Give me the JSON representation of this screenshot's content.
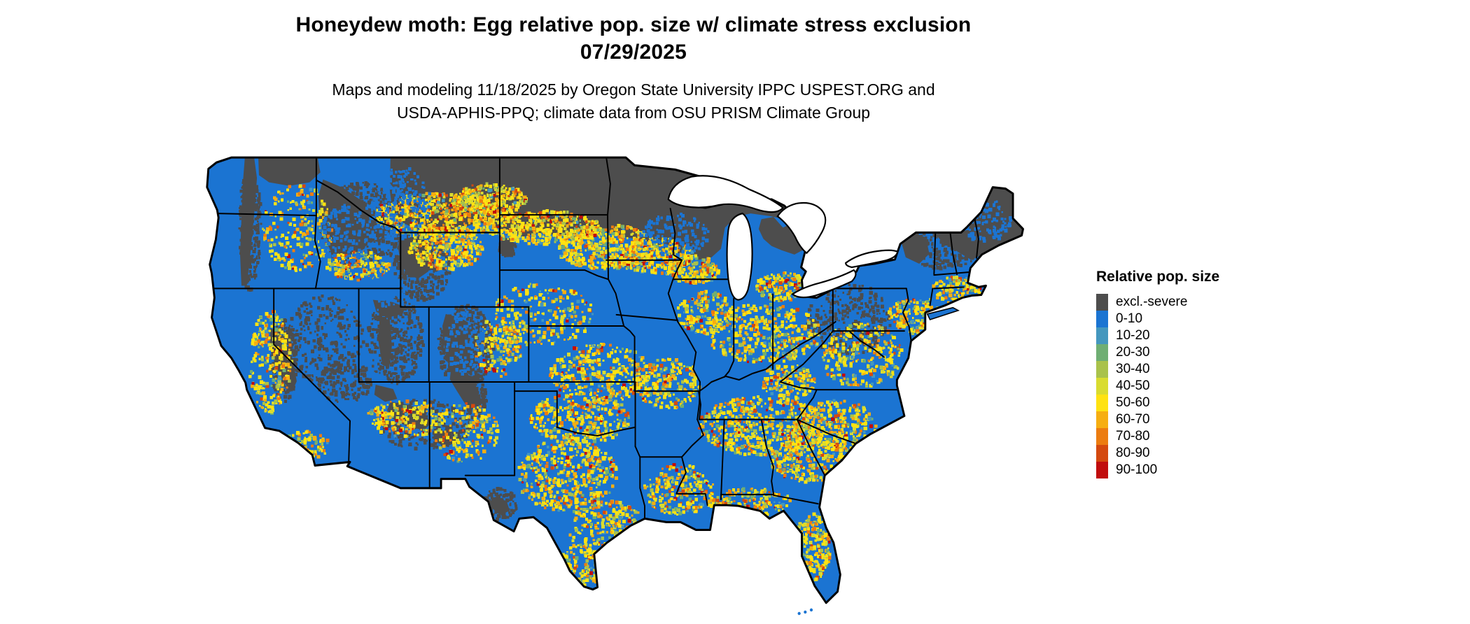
{
  "header": {
    "title": "Honeydew moth: Egg relative pop. size w/ climate stress exclusion",
    "date": "07/29/2025",
    "credit_line1": "Maps and modeling 11/18/2025 by Oregon State University IPPC USPEST.ORG and",
    "credit_line2": "USDA-APHIS-PPQ; climate data from OSU PRISM Climate Group"
  },
  "legend": {
    "title": "Relative pop. size",
    "items": [
      {
        "label": "excl.-severe",
        "color": "#4D4D4D"
      },
      {
        "label": "0-10",
        "color": "#1B74D2"
      },
      {
        "label": "10-20",
        "color": "#4497BE"
      },
      {
        "label": "20-30",
        "color": "#6FAE73"
      },
      {
        "label": "30-40",
        "color": "#A9C24B"
      },
      {
        "label": "40-50",
        "color": "#D9DC30"
      },
      {
        "label": "50-60",
        "color": "#FFE212"
      },
      {
        "label": "60-70",
        "color": "#F6AE11"
      },
      {
        "label": "70-80",
        "color": "#EC7C10"
      },
      {
        "label": "80-90",
        "color": "#D4490F"
      },
      {
        "label": "90-100",
        "color": "#C10D0D"
      }
    ]
  },
  "map": {
    "base_color": "#1B74D2",
    "excluded_color": "#4D4D4D",
    "border_color": "#000000",
    "water_color": "#FFFFFF"
  }
}
